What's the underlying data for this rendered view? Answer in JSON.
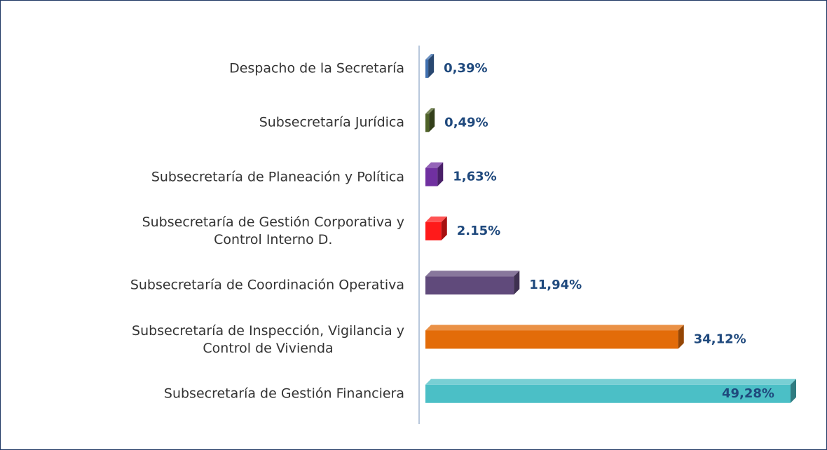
{
  "chart_data": {
    "type": "bar",
    "orientation": "horizontal",
    "categories": [
      "Despacho de la Secretaría",
      "Subsecretaría Jurídica",
      "Subsecretaría de Planeación y Política",
      "Subsecretaría de Gestión Corporativa y\nControl Interno D.",
      "Subsecretaría de Coordinación Operativa",
      "Subsecretaría de Inspección, Vigilancia y\nControl de Vivienda",
      "Subsecretaría de Gestión Financiera"
    ],
    "values": [
      0.39,
      0.49,
      1.63,
      2.15,
      11.94,
      34.12,
      49.28
    ],
    "value_labels": [
      "0,39%",
      "0,49%",
      "1,63%",
      "2.15%",
      "11,94%",
      "34,12%",
      "49,28%"
    ],
    "colors": [
      "#3f6fae",
      "#4f6228",
      "#7030a0",
      "#ff1a1a",
      "#604a7b",
      "#e36c09",
      "#4bbfc6"
    ]
  }
}
